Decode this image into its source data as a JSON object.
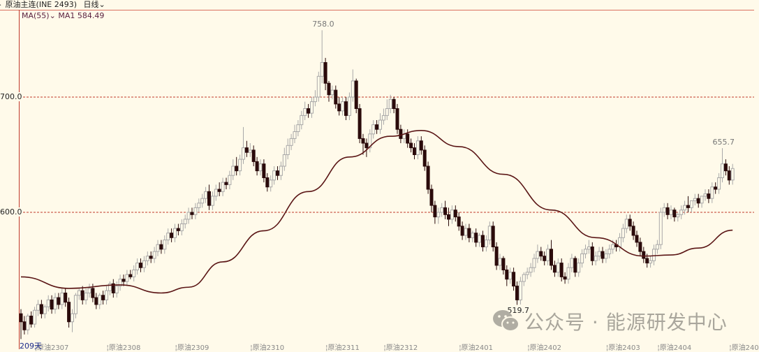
{
  "header": {
    "icon": "play-icon",
    "symbol": "原油主连(INE 2493)",
    "period": "日线",
    "period_icon": "chevron-down-icon"
  },
  "indicator": {
    "name": "MA(55)",
    "value_label": "MA1 584.49"
  },
  "colors": {
    "background": "#fffaea",
    "down_candle": "#2b0b0b",
    "up_candle": "#a8a8a8",
    "ma_line": "#5a1515",
    "grid": "#c0392b"
  },
  "chart_data": {
    "type": "candlestick",
    "y_ticks": [
      {
        "value": 700,
        "label": "700.0"
      },
      {
        "value": 600,
        "label": "600.0"
      }
    ],
    "grid": "dashed lines at y ticks",
    "price_labels": [
      {
        "index": 88,
        "value": 758.0,
        "label": "758.0"
      },
      {
        "index": 145,
        "value": 519.7,
        "label": "519.7"
      },
      {
        "index": 205,
        "value": 655.7,
        "label": "655.7"
      }
    ],
    "x_labels": [
      {
        "index": 4,
        "label": "原油2307"
      },
      {
        "index": 25,
        "label": "原油2308"
      },
      {
        "index": 45,
        "label": "原油2309"
      },
      {
        "index": 67,
        "label": "原油2310"
      },
      {
        "index": 89,
        "label": "原油2311"
      },
      {
        "index": 106,
        "label": "原油2312"
      },
      {
        "index": 128,
        "label": "原油2401"
      },
      {
        "index": 148,
        "label": "原油2402"
      },
      {
        "index": 171,
        "label": "原油2403"
      },
      {
        "index": 186,
        "label": "原油2404"
      },
      {
        "index": 207,
        "label": "原油240"
      }
    ],
    "bar_count_label": "209天",
    "open": [
      512,
      505,
      498,
      510,
      503,
      515,
      520,
      512,
      518,
      524,
      516,
      526,
      520,
      530,
      522,
      505,
      512,
      528,
      532,
      524,
      530,
      534,
      526,
      520,
      528,
      524,
      532,
      538,
      530,
      536,
      542,
      540,
      546,
      544,
      550,
      556,
      552,
      558,
      562,
      560,
      566,
      572,
      568,
      576,
      582,
      578,
      586,
      584,
      590,
      594,
      600,
      598,
      604,
      608,
      612,
      618,
      606,
      614,
      620,
      618,
      626,
      624,
      632,
      640,
      636,
      646,
      656,
      652,
      654,
      644,
      636,
      642,
      630,
      622,
      628,
      636,
      632,
      640,
      650,
      658,
      664,
      670,
      676,
      684,
      690,
      686,
      696,
      700,
      718,
      730,
      712,
      702,
      706,
      694,
      688,
      696,
      684,
      700,
      714,
      690,
      664,
      660,
      656,
      668,
      676,
      672,
      680,
      684,
      690,
      698,
      690,
      672,
      664,
      668,
      660,
      656,
      650,
      662,
      654,
      640,
      620,
      606,
      596,
      600,
      604,
      598,
      594,
      602,
      596,
      588,
      580,
      586,
      578,
      582,
      574,
      580,
      570,
      576,
      588,
      570,
      554,
      560,
      550,
      542,
      548,
      536,
      524,
      540,
      546,
      548,
      552,
      560,
      566,
      562,
      558,
      568,
      554,
      548,
      556,
      544,
      542,
      552,
      560,
      548,
      556,
      564,
      568,
      570,
      558,
      562,
      566,
      560,
      564,
      568,
      572,
      570,
      578,
      586,
      594,
      588,
      580,
      574,
      566,
      560,
      556,
      558,
      568,
      572,
      600,
      604,
      598,
      602,
      596,
      598,
      602,
      606,
      604,
      610,
      612,
      608,
      614,
      616,
      612,
      622,
      620,
      630,
      642,
      636,
      628
    ],
    "high": [
      516,
      510,
      512,
      514,
      518,
      524,
      524,
      520,
      528,
      528,
      530,
      530,
      534,
      534,
      526,
      516,
      530,
      534,
      536,
      534,
      538,
      538,
      530,
      530,
      532,
      536,
      540,
      542,
      540,
      546,
      546,
      550,
      550,
      554,
      560,
      560,
      562,
      566,
      566,
      570,
      576,
      576,
      580,
      586,
      586,
      590,
      590,
      594,
      598,
      604,
      604,
      608,
      612,
      616,
      622,
      624,
      618,
      624,
      626,
      630,
      630,
      636,
      646,
      648,
      650,
      674,
      662,
      660,
      658,
      648,
      646,
      646,
      634,
      632,
      640,
      640,
      644,
      656,
      664,
      668,
      676,
      680,
      688,
      696,
      694,
      700,
      706,
      722,
      758,
      734,
      714,
      710,
      710,
      700,
      700,
      700,
      704,
      724,
      716,
      694,
      668,
      664,
      672,
      680,
      680,
      686,
      690,
      698,
      702,
      700,
      694,
      676,
      672,
      672,
      664,
      660,
      666,
      666,
      658,
      644,
      624,
      610,
      604,
      608,
      610,
      604,
      606,
      606,
      600,
      592,
      590,
      590,
      584,
      586,
      582,
      584,
      580,
      592,
      592,
      574,
      564,
      562,
      554,
      552,
      552,
      540,
      544,
      548,
      552,
      556,
      564,
      572,
      570,
      566,
      572,
      576,
      558,
      560,
      560,
      548,
      556,
      564,
      562,
      560,
      568,
      572,
      576,
      574,
      566,
      570,
      570,
      568,
      572,
      576,
      576,
      582,
      590,
      598,
      598,
      592,
      584,
      578,
      570,
      564,
      562,
      572,
      576,
      604,
      608,
      608,
      606,
      604,
      600,
      606,
      610,
      614,
      610,
      616,
      616,
      614,
      620,
      620,
      626,
      626,
      634,
      655.7,
      646,
      640,
      642
    ],
    "low": [
      490,
      494,
      494,
      500,
      500,
      510,
      508,
      508,
      514,
      512,
      512,
      516,
      516,
      518,
      500,
      496,
      508,
      524,
      520,
      520,
      526,
      522,
      516,
      516,
      520,
      520,
      528,
      526,
      526,
      532,
      536,
      536,
      542,
      540,
      546,
      548,
      548,
      554,
      556,
      556,
      562,
      564,
      564,
      572,
      574,
      574,
      580,
      580,
      586,
      590,
      594,
      594,
      600,
      604,
      608,
      602,
      602,
      610,
      614,
      614,
      620,
      620,
      628,
      632,
      632,
      642,
      648,
      648,
      640,
      632,
      632,
      626,
      618,
      618,
      624,
      628,
      628,
      636,
      646,
      654,
      660,
      666,
      672,
      680,
      682,
      682,
      692,
      696,
      712,
      706,
      696,
      698,
      690,
      684,
      684,
      680,
      680,
      696,
      686,
      660,
      650,
      648,
      652,
      664,
      668,
      668,
      676,
      680,
      686,
      686,
      668,
      660,
      660,
      656,
      652,
      646,
      646,
      650,
      636,
      616,
      600,
      590,
      590,
      596,
      594,
      588,
      590,
      592,
      584,
      576,
      576,
      574,
      574,
      570,
      570,
      566,
      566,
      572,
      566,
      550,
      550,
      546,
      536,
      538,
      532,
      519.7,
      520,
      536,
      542,
      544,
      548,
      556,
      558,
      554,
      554,
      550,
      544,
      544,
      540,
      538,
      538,
      548,
      544,
      544,
      552,
      560,
      564,
      554,
      554,
      558,
      556,
      556,
      560,
      564,
      566,
      566,
      574,
      582,
      584,
      576,
      570,
      562,
      556,
      552,
      552,
      554,
      564,
      568,
      596,
      594,
      594,
      592,
      592,
      594,
      598,
      600,
      600,
      606,
      604,
      604,
      610,
      608,
      608,
      616,
      616,
      626,
      632,
      624,
      624
    ],
    "close": [
      505,
      498,
      510,
      503,
      515,
      520,
      512,
      518,
      524,
      516,
      526,
      520,
      530,
      522,
      505,
      512,
      528,
      532,
      524,
      530,
      534,
      526,
      520,
      528,
      524,
      532,
      538,
      530,
      536,
      542,
      540,
      546,
      544,
      550,
      556,
      552,
      558,
      562,
      560,
      566,
      572,
      568,
      576,
      582,
      578,
      586,
      584,
      590,
      594,
      600,
      598,
      604,
      608,
      612,
      618,
      606,
      614,
      620,
      618,
      626,
      624,
      632,
      640,
      636,
      646,
      656,
      652,
      654,
      644,
      636,
      642,
      630,
      622,
      628,
      636,
      632,
      640,
      650,
      658,
      664,
      670,
      676,
      684,
      690,
      686,
      696,
      700,
      718,
      730,
      712,
      702,
      706,
      694,
      688,
      696,
      684,
      700,
      714,
      690,
      664,
      660,
      656,
      668,
      676,
      672,
      680,
      684,
      690,
      698,
      690,
      672,
      664,
      668,
      660,
      656,
      650,
      662,
      654,
      640,
      620,
      606,
      596,
      600,
      604,
      598,
      594,
      602,
      596,
      588,
      580,
      586,
      578,
      582,
      574,
      580,
      570,
      576,
      588,
      570,
      554,
      560,
      550,
      542,
      548,
      536,
      524,
      540,
      546,
      548,
      552,
      560,
      566,
      562,
      558,
      568,
      554,
      548,
      556,
      544,
      542,
      552,
      560,
      548,
      556,
      564,
      568,
      570,
      558,
      562,
      566,
      560,
      564,
      568,
      572,
      570,
      578,
      586,
      594,
      588,
      580,
      574,
      566,
      560,
      556,
      558,
      568,
      572,
      600,
      604,
      598,
      602,
      596,
      598,
      602,
      606,
      604,
      610,
      612,
      608,
      614,
      616,
      612,
      622,
      620,
      630,
      642,
      636,
      628,
      638
    ],
    "ma": {
      "name": "MA(55)",
      "x": [
        0,
        14,
        29,
        41,
        49,
        59,
        71,
        84,
        96,
        108,
        117,
        128,
        141,
        155,
        168,
        182,
        190,
        198,
        208
      ],
      "values": [
        544,
        534,
        537,
        530,
        535,
        557,
        584,
        618,
        648,
        666,
        671,
        657,
        633,
        602,
        578,
        562,
        563,
        569,
        584.49
      ]
    },
    "y_range": [
      484,
      766
    ]
  },
  "watermark": {
    "icon": "wechat-icon",
    "text": "公众号 · 能源研发中心"
  }
}
